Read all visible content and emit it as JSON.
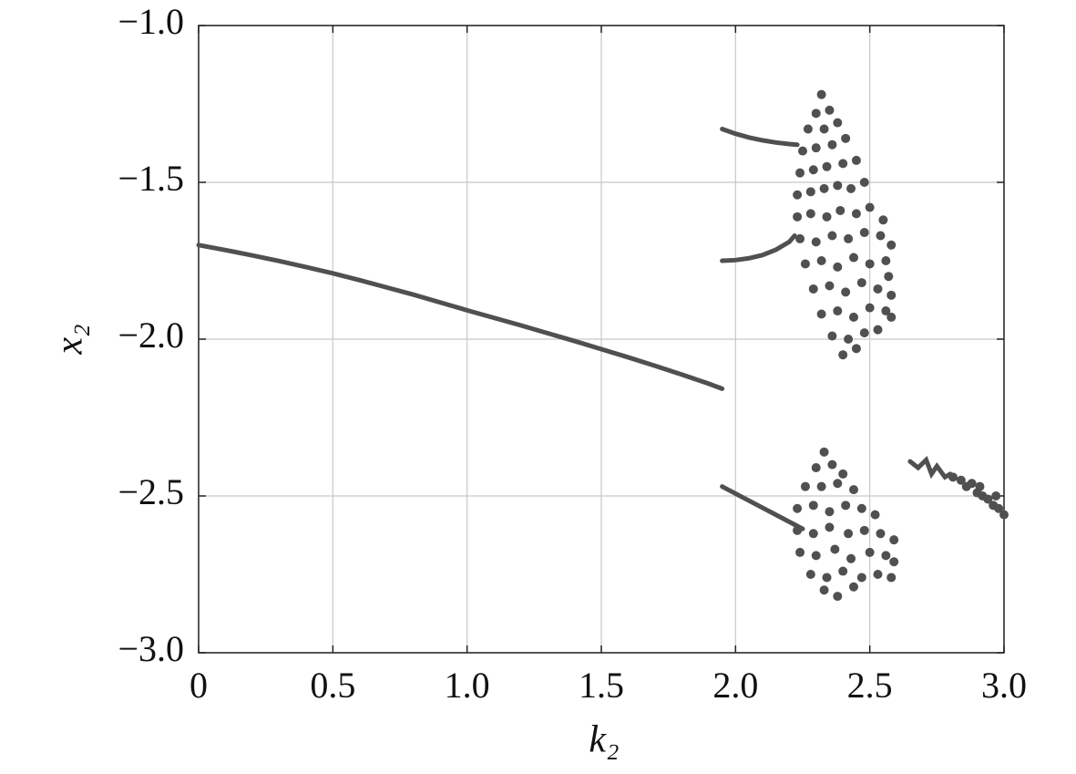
{
  "chart_data": {
    "type": "scatter",
    "x_label": "k₂",
    "y_label": "x₂",
    "xlim": [
      0,
      3
    ],
    "ylim": [
      -3,
      -1
    ],
    "xticks": [
      0,
      0.5,
      {
        "value": 1,
        "label": "1.0"
      },
      1.5,
      {
        "value": 2,
        "label": "2.0"
      },
      2.5,
      {
        "value": 3,
        "label": "3.0"
      }
    ],
    "yticks": [
      {
        "value": -3,
        "label": "−3.0"
      },
      {
        "value": -2.5,
        "label": "−2.5"
      },
      {
        "value": -2,
        "label": "−2.0"
      },
      {
        "value": -1.5,
        "label": "−1.5"
      },
      {
        "value": -1,
        "label": "−1.0"
      }
    ],
    "grid": true,
    "series": [
      {
        "type": "line",
        "color": "#505050",
        "x": [
          0,
          0.1,
          0.2,
          0.3,
          0.4,
          0.5,
          0.6,
          0.7,
          0.8,
          0.9,
          1.0,
          1.1,
          1.2,
          1.3,
          1.4,
          1.5,
          1.6,
          1.7,
          1.8,
          1.9,
          1.95
        ],
        "values": [
          -1.7,
          -1.716,
          -1.733,
          -1.751,
          -1.77,
          -1.79,
          -1.812,
          -1.835,
          -1.858,
          -1.883,
          -1.908,
          -1.932,
          -1.956,
          -1.981,
          -2.006,
          -2.032,
          -2.058,
          -2.085,
          -2.113,
          -2.142,
          -2.158
        ]
      },
      {
        "type": "line",
        "color": "#505050",
        "x": [
          1.95,
          2.0,
          2.05,
          2.1,
          2.15,
          2.2,
          2.23
        ],
        "values": [
          -1.33,
          -1.345,
          -1.357,
          -1.366,
          -1.373,
          -1.378,
          -1.38
        ]
      },
      {
        "type": "line",
        "color": "#505050",
        "x": [
          1.95,
          2.0,
          2.05,
          2.1,
          2.15,
          2.2,
          2.22
        ],
        "values": [
          -1.75,
          -1.748,
          -1.742,
          -1.732,
          -1.715,
          -1.69,
          -1.67
        ]
      },
      {
        "type": "line",
        "color": "#505050",
        "x": [
          1.95,
          2.05,
          2.15,
          2.25
        ],
        "values": [
          -2.47,
          -2.515,
          -2.56,
          -2.605
        ]
      },
      {
        "type": "line",
        "color": "#505050",
        "x": [
          2.65,
          2.68,
          2.71,
          2.73,
          2.75,
          2.78,
          2.8
        ],
        "values": [
          -2.39,
          -2.41,
          -2.385,
          -2.43,
          -2.405,
          -2.44,
          -2.43
        ]
      },
      {
        "type": "scatter",
        "color": "#505050",
        "x": [
          2.32,
          2.3,
          2.35,
          2.27,
          2.33,
          2.38,
          2.25,
          2.3,
          2.36,
          2.41,
          2.24,
          2.29,
          2.34,
          2.4,
          2.45,
          2.23,
          2.28,
          2.33,
          2.38,
          2.43,
          2.48,
          2.23,
          2.28,
          2.34,
          2.39,
          2.45,
          2.5,
          2.55,
          2.24,
          2.3,
          2.36,
          2.42,
          2.48,
          2.54,
          2.58,
          2.26,
          2.32,
          2.38,
          2.44,
          2.5,
          2.56,
          2.29,
          2.35,
          2.41,
          2.47,
          2.53,
          2.58,
          2.32,
          2.38,
          2.44,
          2.5,
          2.56,
          2.36,
          2.42,
          2.48,
          2.53,
          2.4,
          2.45,
          2.58,
          2.57
        ],
        "values": [
          -1.22,
          -1.28,
          -1.27,
          -1.33,
          -1.33,
          -1.31,
          -1.4,
          -1.39,
          -1.38,
          -1.36,
          -1.47,
          -1.46,
          -1.45,
          -1.44,
          -1.43,
          -1.54,
          -1.53,
          -1.52,
          -1.51,
          -1.52,
          -1.5,
          -1.61,
          -1.6,
          -1.61,
          -1.59,
          -1.6,
          -1.58,
          -1.62,
          -1.68,
          -1.69,
          -1.67,
          -1.68,
          -1.66,
          -1.67,
          -1.7,
          -1.76,
          -1.75,
          -1.77,
          -1.74,
          -1.76,
          -1.75,
          -1.84,
          -1.83,
          -1.85,
          -1.82,
          -1.84,
          -1.86,
          -1.92,
          -1.91,
          -1.93,
          -1.9,
          -1.91,
          -1.99,
          -2.0,
          -1.98,
          -1.97,
          -2.05,
          -2.03,
          -1.93,
          -1.8
        ]
      },
      {
        "type": "scatter",
        "color": "#505050",
        "x": [
          2.33,
          2.3,
          2.36,
          2.4,
          2.26,
          2.32,
          2.38,
          2.44,
          2.23,
          2.29,
          2.35,
          2.41,
          2.47,
          2.52,
          2.23,
          2.29,
          2.35,
          2.42,
          2.48,
          2.54,
          2.59,
          2.24,
          2.3,
          2.37,
          2.43,
          2.5,
          2.56,
          2.59,
          2.28,
          2.34,
          2.4,
          2.47,
          2.53,
          2.58,
          2.33,
          2.38,
          2.44
        ],
        "values": [
          -2.36,
          -2.41,
          -2.4,
          -2.43,
          -2.47,
          -2.47,
          -2.46,
          -2.48,
          -2.54,
          -2.53,
          -2.55,
          -2.53,
          -2.54,
          -2.56,
          -2.61,
          -2.62,
          -2.6,
          -2.62,
          -2.61,
          -2.62,
          -2.64,
          -2.68,
          -2.69,
          -2.67,
          -2.7,
          -2.68,
          -2.69,
          -2.71,
          -2.75,
          -2.76,
          -2.74,
          -2.76,
          -2.75,
          -2.76,
          -2.8,
          -2.82,
          -2.79
        ]
      },
      {
        "type": "scatter",
        "color": "#505050",
        "x": [
          2.81,
          2.84,
          2.86,
          2.88,
          2.9,
          2.92,
          2.94,
          2.96,
          2.98,
          3.0,
          2.91,
          2.97
        ],
        "values": [
          -2.44,
          -2.45,
          -2.47,
          -2.46,
          -2.49,
          -2.5,
          -2.51,
          -2.53,
          -2.54,
          -2.56,
          -2.47,
          -2.5
        ]
      }
    ]
  }
}
